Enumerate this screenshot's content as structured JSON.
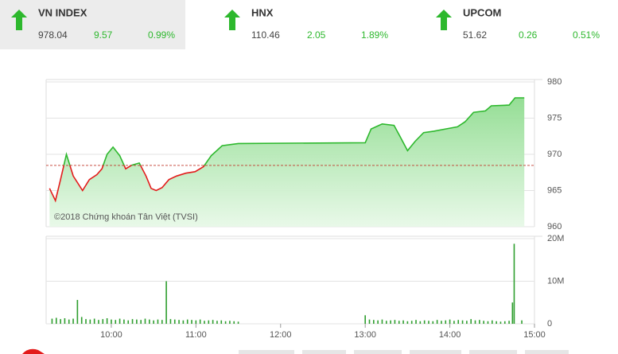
{
  "header": {
    "indices": [
      {
        "name": "VN INDEX",
        "price": "978.04",
        "change": "9.57",
        "percent": "0.99%"
      },
      {
        "name": "HNX",
        "price": "110.46",
        "change": "2.05",
        "percent": "1.89%"
      },
      {
        "name": "UPCOM",
        "price": "51.62",
        "change": "0.26",
        "percent": "0.51%"
      }
    ]
  },
  "chart_data": [
    {
      "type": "line",
      "annotation": "©2018 Chứng khoán Tân Việt (TVSI)",
      "reference": 968.47,
      "color": "#2db82d",
      "below_color": "#e31b1b",
      "fill": "#9fe39f",
      "x": [
        9.27,
        9.34,
        9.4,
        9.47,
        9.55,
        9.66,
        9.74,
        9.83,
        9.89,
        9.95,
        10.02,
        10.1,
        10.17,
        10.24,
        10.33,
        10.41,
        10.47,
        10.53,
        10.6,
        10.68,
        10.77,
        10.88,
        10.99,
        11.09,
        11.18,
        11.31,
        11.5,
        13.0,
        13.07,
        13.2,
        13.34,
        13.41,
        13.5,
        13.59,
        13.69,
        13.81,
        13.95,
        14.09,
        14.18,
        14.28,
        14.42,
        14.49,
        14.7,
        14.77,
        14.88
      ],
      "values": [
        965.3,
        963.6,
        966.5,
        970.0,
        967.0,
        965.0,
        966.5,
        967.2,
        968.0,
        970.0,
        971.0,
        969.8,
        968.0,
        968.5,
        968.8,
        967.0,
        965.3,
        965.0,
        965.4,
        966.5,
        967.0,
        967.4,
        967.6,
        968.3,
        969.8,
        971.2,
        971.5,
        971.6,
        973.5,
        974.2,
        974.0,
        972.5,
        970.5,
        971.8,
        973.0,
        973.2,
        973.5,
        973.8,
        974.5,
        975.8,
        976.0,
        976.7,
        976.8,
        977.8,
        977.8
      ],
      "xlim": [
        9.23,
        15
      ],
      "ylim": [
        960,
        980
      ],
      "yticks": [
        960,
        965,
        970,
        975,
        980
      ],
      "grid": true
    },
    {
      "type": "bar",
      "color": "#2e9e2e",
      "x": [
        9.3,
        9.35,
        9.4,
        9.45,
        9.5,
        9.55,
        9.6,
        9.65,
        9.7,
        9.75,
        9.8,
        9.85,
        9.9,
        9.95,
        10.0,
        10.05,
        10.1,
        10.15,
        10.2,
        10.25,
        10.3,
        10.35,
        10.4,
        10.45,
        10.5,
        10.55,
        10.6,
        10.65,
        10.7,
        10.75,
        10.8,
        10.85,
        10.9,
        10.95,
        11.0,
        11.05,
        11.1,
        11.15,
        11.2,
        11.25,
        11.3,
        11.35,
        11.4,
        11.45,
        11.5,
        13.0,
        13.05,
        13.1,
        13.15,
        13.2,
        13.25,
        13.3,
        13.35,
        13.4,
        13.45,
        13.5,
        13.55,
        13.6,
        13.65,
        13.7,
        13.75,
        13.8,
        13.85,
        13.9,
        13.95,
        14.0,
        14.05,
        14.1,
        14.15,
        14.2,
        14.25,
        14.3,
        14.35,
        14.4,
        14.45,
        14.5,
        14.55,
        14.6,
        14.65,
        14.7,
        14.74,
        14.76,
        14.85
      ],
      "values": [
        1.2,
        1.4,
        1.1,
        1.3,
        1.0,
        1.2,
        5.6,
        1.6,
        1.1,
        1.0,
        1.2,
        0.9,
        1.1,
        1.3,
        1.0,
        0.9,
        1.2,
        1.0,
        0.8,
        1.1,
        1.0,
        0.9,
        1.2,
        1.0,
        0.8,
        1.0,
        0.9,
        10.0,
        1.1,
        1.0,
        0.9,
        0.8,
        1.0,
        0.9,
        0.8,
        1.0,
        0.7,
        0.8,
        0.9,
        0.7,
        0.8,
        0.6,
        0.7,
        0.6,
        0.5,
        2.0,
        1.0,
        0.9,
        0.8,
        1.0,
        0.7,
        0.8,
        0.9,
        0.7,
        0.8,
        0.6,
        0.7,
        0.9,
        0.6,
        0.8,
        0.7,
        0.6,
        0.9,
        0.7,
        0.8,
        1.0,
        0.7,
        0.9,
        0.8,
        0.7,
        1.1,
        0.8,
        0.9,
        0.7,
        0.6,
        0.8,
        0.6,
        0.5,
        0.6,
        0.7,
        5.0,
        18.8,
        0.8
      ],
      "xlim": [
        9.23,
        15
      ],
      "ylim": [
        0,
        20
      ],
      "yticks": [
        {
          "value": 0,
          "label": "0"
        },
        {
          "value": 10,
          "label": "10M"
        },
        {
          "value": 20,
          "label": "20M"
        }
      ],
      "xticks": [
        {
          "value": 10,
          "label": "10:00"
        },
        {
          "value": 11,
          "label": "11:00"
        },
        {
          "value": 12,
          "label": "12:00"
        },
        {
          "value": 13,
          "label": "13:00"
        },
        {
          "value": 14,
          "label": "14:00"
        },
        {
          "value": 15,
          "label": "15:00"
        }
      ],
      "grid": true
    }
  ]
}
